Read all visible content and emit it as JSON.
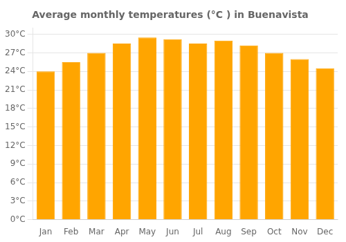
{
  "chart_data": {
    "type": "bar",
    "title": "Average monthly temperatures (°C ) in Buenavista",
    "categories": [
      "Jan",
      "Feb",
      "Mar",
      "Apr",
      "May",
      "Jun",
      "Jul",
      "Aug",
      "Sep",
      "Oct",
      "Nov",
      "Dec"
    ],
    "values": [
      24.0,
      25.5,
      27.0,
      28.5,
      29.5,
      29.2,
      28.5,
      29.0,
      28.2,
      27.0,
      26.0,
      24.5
    ],
    "color": "#FFA500",
    "ylim": [
      0,
      31
    ],
    "yticks": [
      {
        "value": 0,
        "label": "0°C"
      },
      {
        "value": 3,
        "label": "3°C"
      },
      {
        "value": 6,
        "label": "6°C"
      },
      {
        "value": 9,
        "label": "9°C"
      },
      {
        "value": 12,
        "label": "12°C"
      },
      {
        "value": 15,
        "label": "15°C"
      },
      {
        "value": 18,
        "label": "18°C"
      },
      {
        "value": 21,
        "label": "21°C"
      },
      {
        "value": 24,
        "label": "24°C"
      },
      {
        "value": 27,
        "label": "27°C"
      },
      {
        "value": 30,
        "label": "30°C"
      }
    ],
    "grid": true
  }
}
